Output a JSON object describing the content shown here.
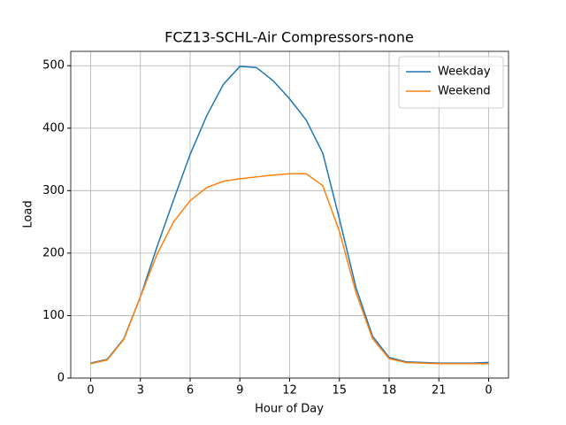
{
  "chart_data": {
    "type": "line",
    "title": "FCZ13-SCHL-Air Compressors-none",
    "xlabel": "Hour of Day",
    "ylabel": "Load",
    "x": [
      0,
      1,
      2,
      3,
      4,
      5,
      6,
      7,
      8,
      9,
      10,
      11,
      12,
      13,
      14,
      15,
      16,
      17,
      18,
      19,
      20,
      21,
      22,
      23,
      24
    ],
    "series": [
      {
        "name": "Weekday",
        "color": "#1f77b4",
        "values": [
          24,
          30,
          63,
          130,
          210,
          285,
          358,
          420,
          470,
          499,
          497,
          476,
          447,
          413,
          360,
          255,
          145,
          67,
          33,
          26,
          25,
          24,
          24,
          24,
          25
        ]
      },
      {
        "name": "Weekend",
        "color": "#ff7f0e",
        "values": [
          23,
          29,
          62,
          130,
          198,
          250,
          284,
          305,
          315,
          319,
          322,
          325,
          327,
          327,
          308,
          235,
          137,
          63,
          31,
          25,
          24,
          23,
          23,
          23,
          23
        ]
      }
    ],
    "xlim": [
      -1.2,
      25.2
    ],
    "ylim": [
      0,
      523
    ],
    "xticks": [
      0,
      3,
      6,
      9,
      12,
      15,
      18,
      21,
      {
        "value": 24,
        "label": "0"
      }
    ],
    "yticks": [
      0,
      100,
      200,
      300,
      400,
      500
    ],
    "grid": true,
    "legend": "upper right"
  }
}
